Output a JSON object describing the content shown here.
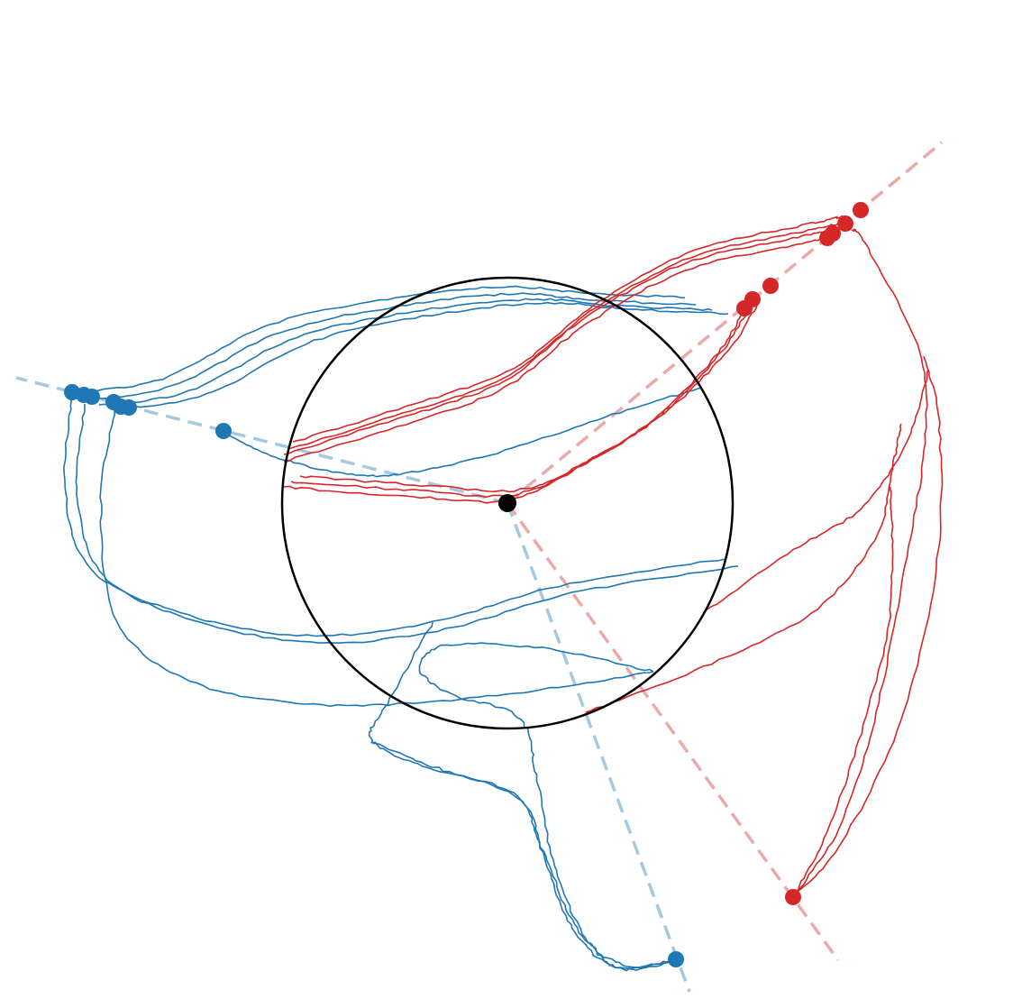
{
  "figure": {
    "colors": {
      "blue": "#1f77b4",
      "blue_light": "#a6c8e0",
      "red": "#d62728",
      "red_light": "#eba9a9",
      "circle": "#000000",
      "center": "#000000"
    },
    "guide_lines": [
      {
        "name": "guide-line-blue-left",
        "color": "blue_light",
        "dashed": true
      },
      {
        "name": "guide-line-blue-down",
        "color": "blue_light",
        "dashed": true
      },
      {
        "name": "guide-line-red-up",
        "color": "red_light",
        "dashed": true
      },
      {
        "name": "guide-line-red-down",
        "color": "red_light",
        "dashed": true
      }
    ],
    "trajectory_groups": [
      {
        "name": "blue-trajectories",
        "color": "blue",
        "count": 12
      },
      {
        "name": "red-trajectories",
        "color": "red",
        "count": 12
      }
    ],
    "endpoint_groups": [
      {
        "name": "blue-endpoints",
        "color": "blue",
        "count": 8
      },
      {
        "name": "red-endpoints",
        "color": "red",
        "count": 8
      }
    ]
  }
}
